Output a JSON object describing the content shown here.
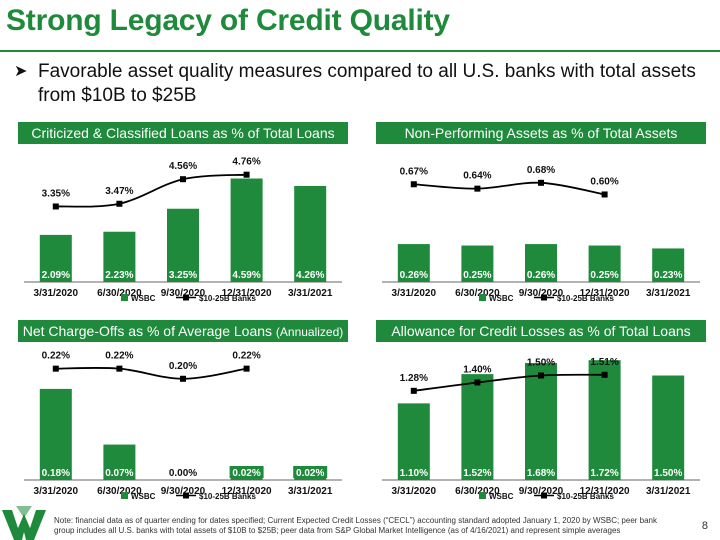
{
  "title": "Strong Legacy of Credit Quality",
  "bullet": "Favorable asset quality measures compared to all U.S. banks with total assets from $10B to $25B",
  "footnote": "Note: financial data as of quarter ending  for dates specified; Current Expected Credit Losses (“CECL”) accounting standard adopted January 1, 2020 by WSBC; peer bank group includes all U.S. banks with total assets of $10B to $25B; peer data from S&P Global  Market Intelligence (as of 4/16/2021) and represent simple averages",
  "page_number": "8",
  "colors": {
    "brand": "#1f8a3b",
    "bar": "#1f8a3b",
    "line": "#000000"
  },
  "logo_icon": "wesbanco-w-logo-icon",
  "chart_data": [
    {
      "type": "bar",
      "title": "Criticized & Classified Loans as % of Total Loans",
      "subtitle": "",
      "categories": [
        "3/31/2020",
        "6/30/2020",
        "9/30/2020",
        "12/31/2020",
        "3/31/2021"
      ],
      "series": [
        {
          "name": "WSBC",
          "type": "bar",
          "values": [
            2.09,
            2.23,
            3.25,
            4.59,
            4.26
          ],
          "labels": [
            "2.09%",
            "2.23%",
            "3.25%",
            "4.59%",
            "4.26%"
          ]
        },
        {
          "name": "$10-25B Banks",
          "type": "line",
          "values": [
            3.35,
            3.47,
            4.56,
            4.76,
            null
          ],
          "labels": [
            "3.35%",
            "3.47%",
            "4.56%",
            "4.76%",
            ""
          ]
        }
      ],
      "ylim": [
        0,
        5.5
      ],
      "legend": "bottom"
    },
    {
      "type": "bar",
      "title": "Non-Performing Assets as % of Total Assets",
      "subtitle": "",
      "categories": [
        "3/31/2020",
        "6/30/2020",
        "9/30/2020",
        "12/31/2020",
        "3/31/2021"
      ],
      "series": [
        {
          "name": "WSBC",
          "type": "bar",
          "values": [
            0.26,
            0.25,
            0.26,
            0.25,
            0.23
          ],
          "labels": [
            "0.26%",
            "0.25%",
            "0.26%",
            "0.25%",
            "0.23%"
          ]
        },
        {
          "name": "$10-25B Banks",
          "type": "line",
          "values": [
            0.67,
            0.64,
            0.68,
            0.6,
            null
          ],
          "labels": [
            "0.67%",
            "0.64%",
            "0.68%",
            "0.60%",
            ""
          ]
        }
      ],
      "ylim": [
        0,
        0.85
      ],
      "legend": "bottom"
    },
    {
      "type": "bar",
      "title": "Net Charge-Offs as % of Average Loans",
      "subtitle": "(Annualized)",
      "categories": [
        "3/31/2020",
        "6/30/2020",
        "9/30/2020",
        "12/31/2020",
        "3/31/2021"
      ],
      "series": [
        {
          "name": "WSBC",
          "type": "bar",
          "values": [
            0.18,
            0.07,
            0.0,
            0.02,
            0.02
          ],
          "labels": [
            "0.18%",
            "0.07%",
            "0.00%",
            "0.02%",
            "0.02%"
          ]
        },
        {
          "name": "$10-25B Banks",
          "type": "line",
          "values": [
            0.22,
            0.22,
            0.2,
            0.22,
            null
          ],
          "labels": [
            "0.22%",
            "0.22%",
            "0.20%",
            "0.22%",
            ""
          ]
        }
      ],
      "ylim": [
        0,
        0.245
      ],
      "legend": "bottom"
    },
    {
      "type": "bar",
      "title": "Allowance for Credit Losses as % of Total Loans",
      "subtitle": "",
      "categories": [
        "3/31/2020",
        "6/30/2020",
        "9/30/2020",
        "12/31/2020",
        "3/31/2021"
      ],
      "series": [
        {
          "name": "WSBC",
          "type": "bar",
          "values": [
            1.1,
            1.52,
            1.68,
            1.72,
            1.5
          ],
          "labels": [
            "1.10%",
            "1.52%",
            "1.68%",
            "1.72%",
            "1.50%"
          ]
        },
        {
          "name": "$10-25B Banks",
          "type": "line",
          "values": [
            1.28,
            1.4,
            1.5,
            1.51,
            null
          ],
          "labels": [
            "1.28%",
            "1.40%",
            "1.50%",
            "1.51%",
            ""
          ]
        }
      ],
      "ylim": [
        0,
        1.78
      ],
      "legend": "bottom"
    }
  ]
}
